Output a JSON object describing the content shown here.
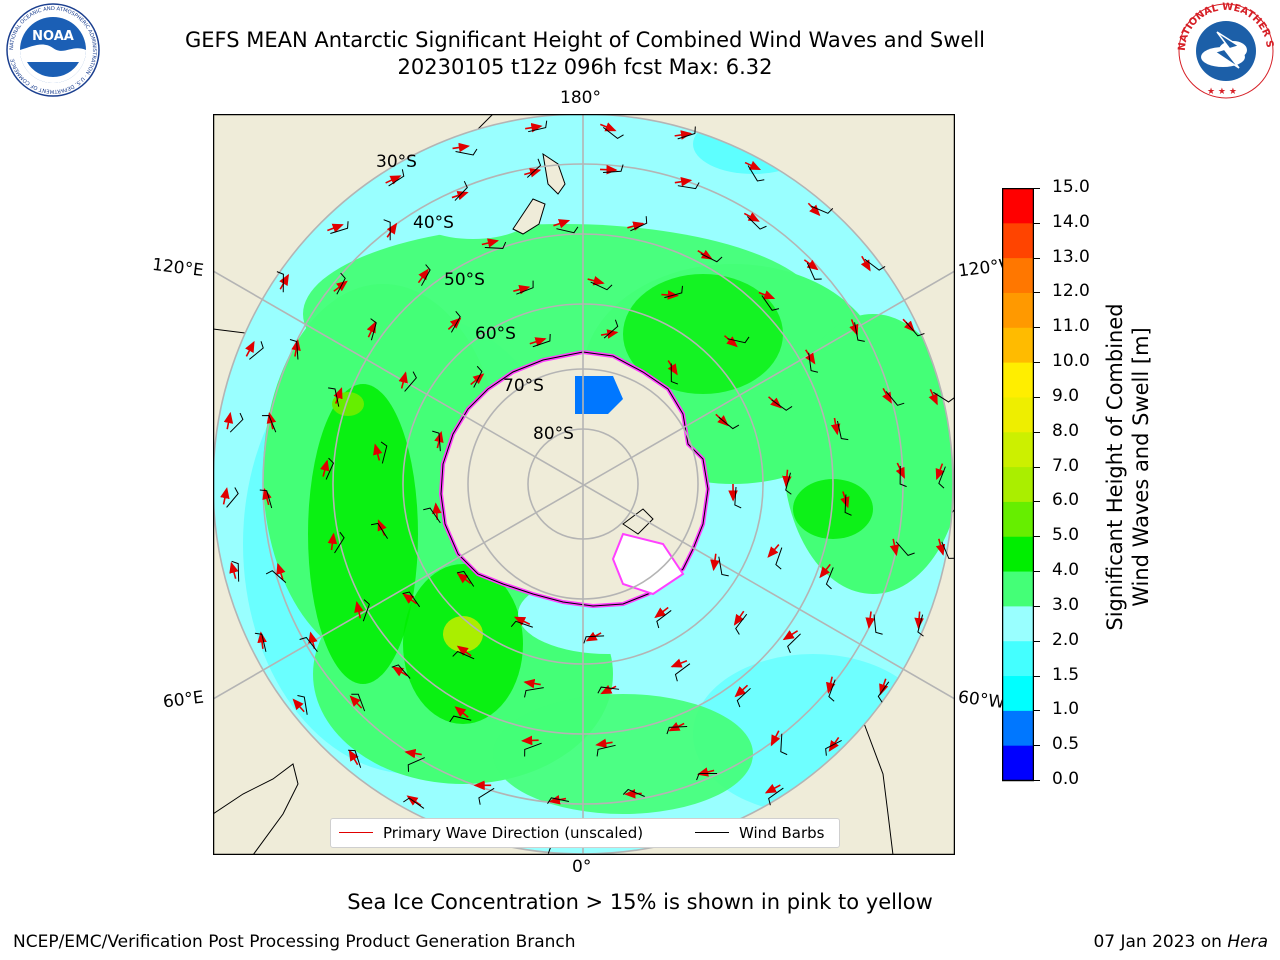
{
  "header": {
    "title_line1": "GEFS MEAN Antarctic Significant Height of Combined Wind Waves and Swell",
    "title_line2": "20230105 t12z 096h fcst   Max: 6.32"
  },
  "logos": {
    "left": {
      "name": "NOAA",
      "text": "NOAA",
      "ring_text": "NATIONAL OCEANIC AND ATMOSPHERIC ADMINISTRATION · U.S. DEPARTMENT OF COMMERCE"
    },
    "right": {
      "name": "National Weather Service",
      "ring_text": "NATIONAL WEATHER SERVICE"
    }
  },
  "map": {
    "longitude_labels": {
      "top": "180°",
      "bottom": "0°",
      "upper_left": "120°E",
      "upper_right": "120°W",
      "lower_left": "60°E",
      "lower_right": "60°W"
    },
    "latitude_labels": [
      "30°S",
      "40°S",
      "50°S",
      "60°S",
      "70°S",
      "80°S"
    ],
    "colors": {
      "land": "#efecd9",
      "ocean_bg": "#ffffff",
      "gridline": "#b4b4b4",
      "wave_arrow": "#e00000",
      "wind_barb": "#000000",
      "sea_ice": "#ff40ff"
    }
  },
  "legend": {
    "primary_wave_label": "Primary Wave Direction (unscaled)",
    "wind_barbs_label": "Wind Barbs"
  },
  "colorbar": {
    "label": "Significant Height of Combined Wind Waves and Swell [m]",
    "label_line1": "Significant Height of Combined",
    "label_line2": "Wind Waves and Swell [m]",
    "tick_labels": [
      "0.0",
      "0.5",
      "1.0",
      "1.5",
      "2.0",
      "3.0",
      "4.0",
      "5.0",
      "6.0",
      "7.0",
      "8.0",
      "9.0",
      "10.0",
      "11.0",
      "12.0",
      "13.0",
      "14.0",
      "15.0"
    ],
    "colors": [
      "#0000ff",
      "#0077ff",
      "#00ffff",
      "#44ffff",
      "#99ffff",
      "#44ff77",
      "#00ee00",
      "#66ee00",
      "#aaee00",
      "#ccf000",
      "#eeee00",
      "#ffee00",
      "#ffbb00",
      "#ff9900",
      "#ff7700",
      "#ff4400",
      "#ff0000"
    ]
  },
  "footer": {
    "sea_ice_note": "Sea Ice Concentration > 15% is shown in pink to yellow",
    "branch": "NCEP/EMC/Verification Post Processing Product Generation Branch",
    "date": "07 Jan 2023 on",
    "host": "Hera"
  }
}
